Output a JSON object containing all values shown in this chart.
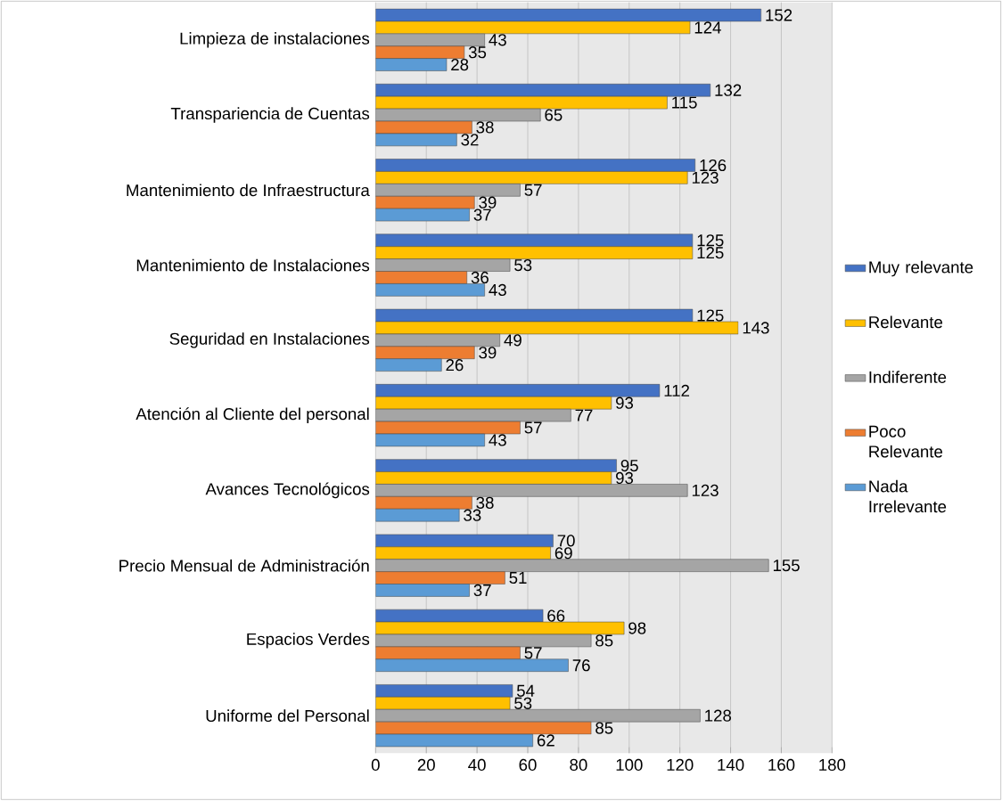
{
  "chart_data": {
    "type": "bar",
    "orientation": "horizontal",
    "categories": [
      "Limpieza de instalaciones",
      "Transpariencia de Cuentas",
      "Mantenimiento de Infraestructura",
      "Mantenimiento de Instalaciones",
      "Seguridad en Instalaciones",
      "Atención al Cliente del personal",
      "Avances Tecnológicos",
      "Precio Mensual de Administración",
      "Espacios Verdes",
      "Uniforme del Personal"
    ],
    "series": [
      {
        "name": "Muy relevante",
        "color": "#4472c4",
        "values": [
          152,
          132,
          126,
          125,
          125,
          112,
          95,
          70,
          66,
          54
        ]
      },
      {
        "name": "Relevante",
        "color": "#ffc000",
        "values": [
          124,
          115,
          123,
          125,
          143,
          93,
          93,
          69,
          98,
          53
        ]
      },
      {
        "name": "Indiferente",
        "color": "#a5a5a5",
        "values": [
          43,
          65,
          57,
          53,
          49,
          77,
          123,
          155,
          85,
          128
        ]
      },
      {
        "name": "Poco Relevante",
        "color": "#ed7d31",
        "values": [
          35,
          38,
          39,
          36,
          39,
          57,
          38,
          51,
          57,
          85
        ]
      },
      {
        "name": "Nada Irrelevante",
        "color": "#5b9bd5",
        "values": [
          28,
          32,
          37,
          43,
          26,
          43,
          33,
          37,
          76,
          62
        ]
      }
    ],
    "xlim": [
      0,
      180
    ],
    "xticks": [
      0,
      20,
      40,
      60,
      80,
      100,
      120,
      140,
      160,
      180
    ],
    "grid": "x",
    "legend": "right",
    "data_labels": true
  }
}
